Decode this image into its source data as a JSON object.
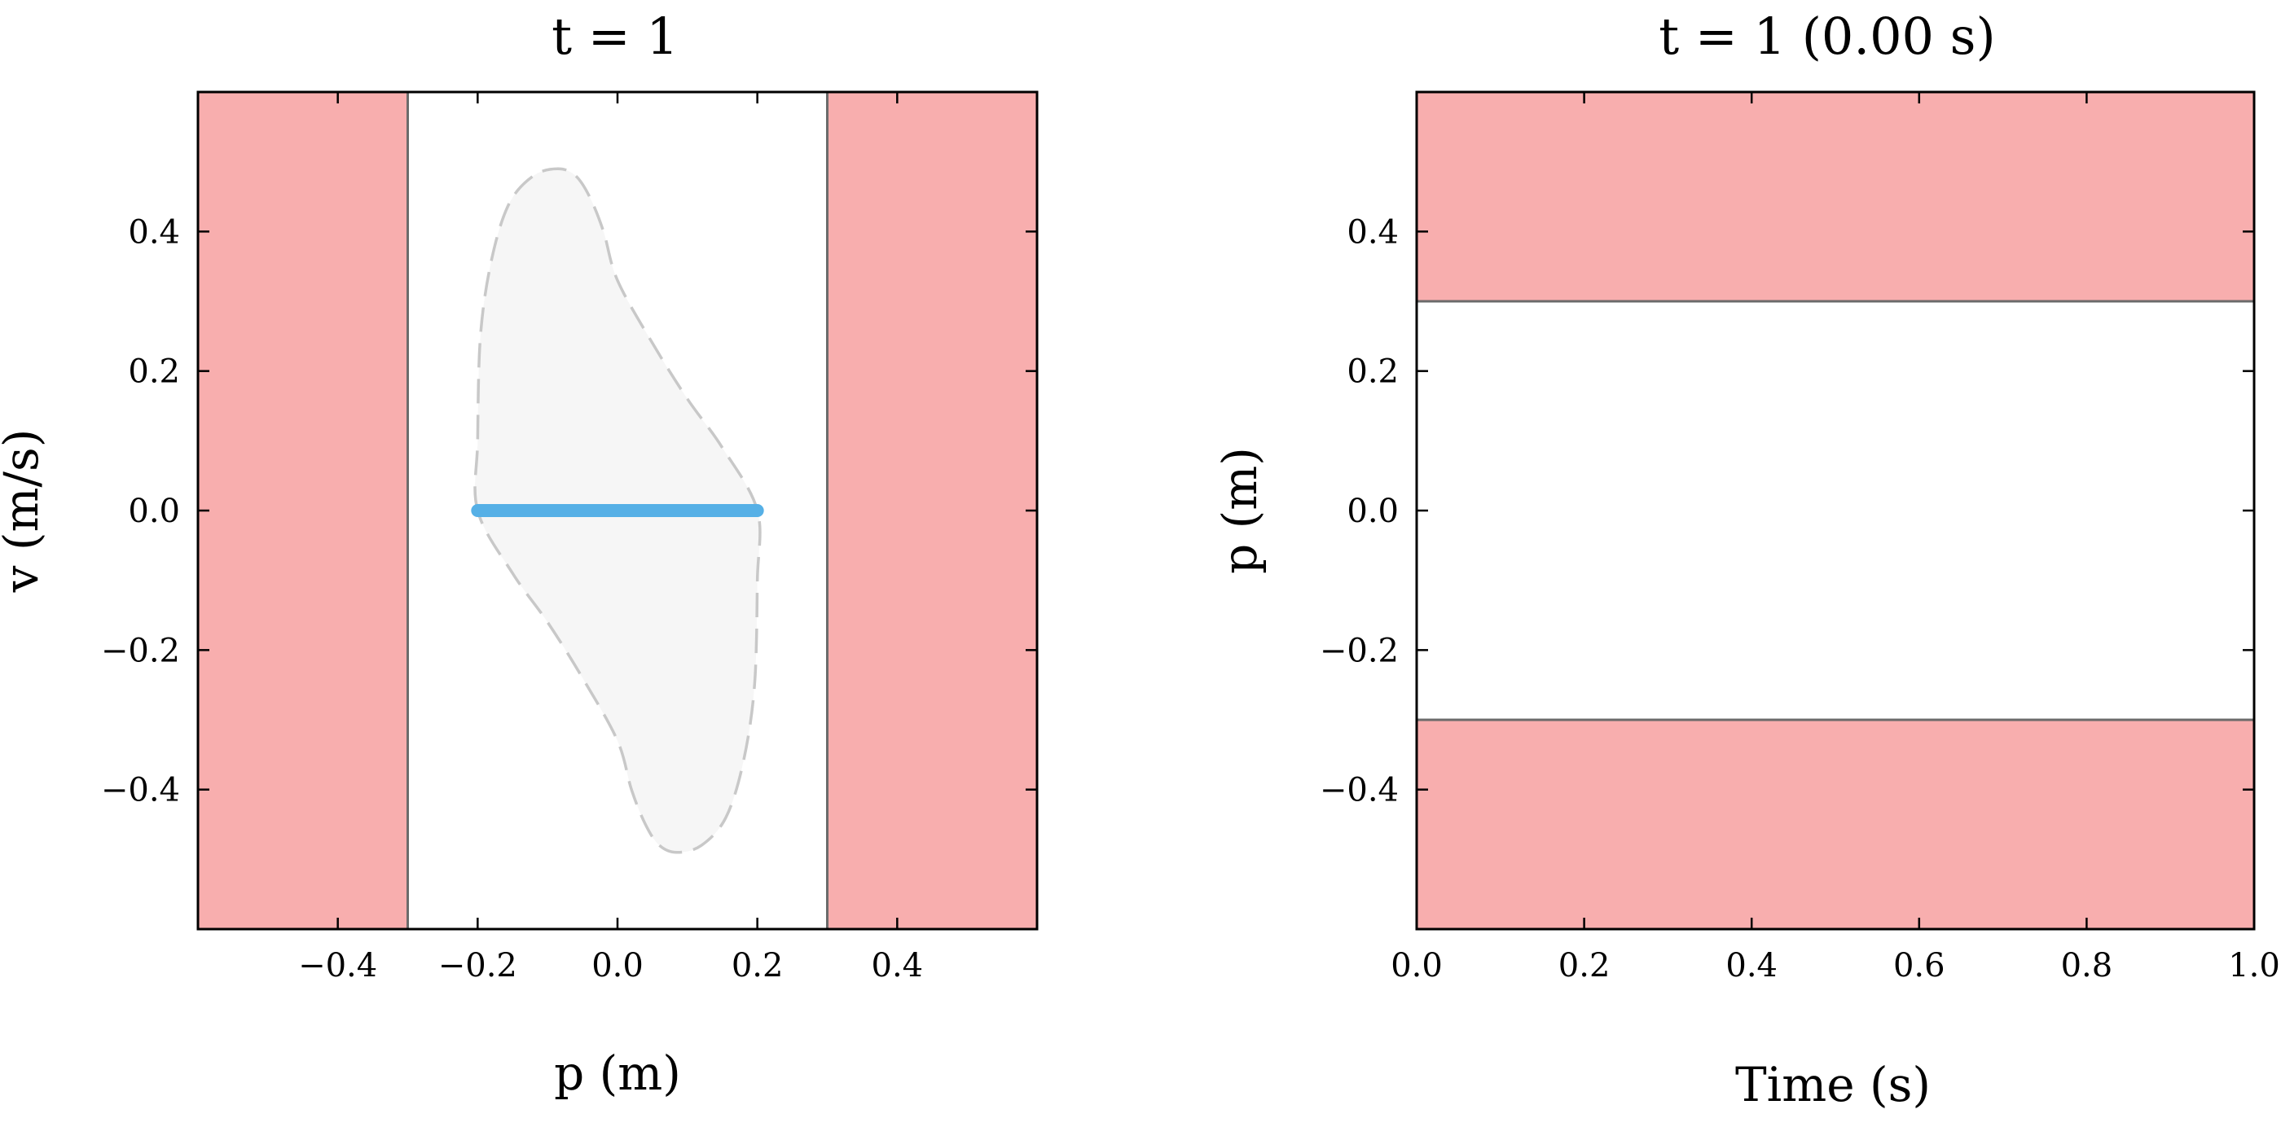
{
  "colors": {
    "forbidden": "#f8aeae",
    "boundary": "#6b6b6b",
    "envelope_fill": "#f6f6f6",
    "envelope_stroke": "#c8c8c8",
    "state": "#56b0e6"
  },
  "chart_data": [
    {
      "type": "area",
      "title": "t = 1",
      "xlabel": "p (m)",
      "ylabel": "v (m/s)",
      "xlim": [
        -0.6,
        0.6
      ],
      "ylim": [
        -0.6,
        0.6
      ],
      "xticks": [
        -0.4,
        -0.2,
        0.0,
        0.2,
        0.4
      ],
      "xtick_labels": [
        "−0.4",
        "−0.2",
        "0.0",
        "0.2",
        "0.4"
      ],
      "yticks": [
        -0.4,
        -0.2,
        0.0,
        0.2,
        0.4
      ],
      "ytick_labels": [
        "−0.4",
        "−0.2",
        "0.0",
        "0.2",
        "0.4"
      ],
      "forbidden_regions": [
        {
          "axis": "x",
          "from": -0.6,
          "to": -0.3
        },
        {
          "axis": "x",
          "from": 0.3,
          "to": 0.6
        }
      ],
      "reachable_envelope": [
        [
          -0.2,
          0.0
        ],
        [
          -0.2,
          0.1
        ],
        [
          -0.196,
          0.25
        ],
        [
          -0.18,
          0.36
        ],
        [
          -0.155,
          0.44
        ],
        [
          -0.12,
          0.48
        ],
        [
          -0.085,
          0.49
        ],
        [
          -0.06,
          0.48
        ],
        [
          -0.04,
          0.45
        ],
        [
          -0.02,
          0.4
        ],
        [
          0.0,
          0.33
        ],
        [
          0.05,
          0.24
        ],
        [
          0.1,
          0.16
        ],
        [
          0.15,
          0.09
        ],
        [
          0.2,
          0.0
        ],
        [
          0.2,
          -0.1
        ],
        [
          0.196,
          -0.25
        ],
        [
          0.18,
          -0.36
        ],
        [
          0.155,
          -0.44
        ],
        [
          0.12,
          -0.48
        ],
        [
          0.085,
          -0.49
        ],
        [
          0.06,
          -0.48
        ],
        [
          0.04,
          -0.45
        ],
        [
          0.02,
          -0.4
        ],
        [
          0.0,
          -0.33
        ],
        [
          -0.05,
          -0.24
        ],
        [
          -0.1,
          -0.16
        ],
        [
          -0.15,
          -0.09
        ],
        [
          -0.2,
          0.0
        ]
      ],
      "state_segment": {
        "x": [
          -0.2,
          0.2
        ],
        "y": [
          0.0,
          0.0
        ]
      }
    },
    {
      "type": "area",
      "title": "t = 1 (0.00 s)",
      "xlabel": "Time (s)",
      "ylabel": "p (m)",
      "xlim": [
        0.0,
        1.0
      ],
      "ylim": [
        -0.6,
        0.6
      ],
      "xticks": [
        0.0,
        0.2,
        0.4,
        0.6,
        0.8,
        1.0
      ],
      "xtick_labels": [
        "0.0",
        "0.2",
        "0.4",
        "0.6",
        "0.8",
        "1.0"
      ],
      "yticks": [
        -0.4,
        -0.2,
        0.0,
        0.2,
        0.4
      ],
      "ytick_labels": [
        "−0.4",
        "−0.2",
        "0.0",
        "0.2",
        "0.4"
      ],
      "forbidden_regions": [
        {
          "axis": "y",
          "from": 0.3,
          "to": 0.6
        },
        {
          "axis": "y",
          "from": -0.6,
          "to": -0.3
        }
      ]
    }
  ]
}
